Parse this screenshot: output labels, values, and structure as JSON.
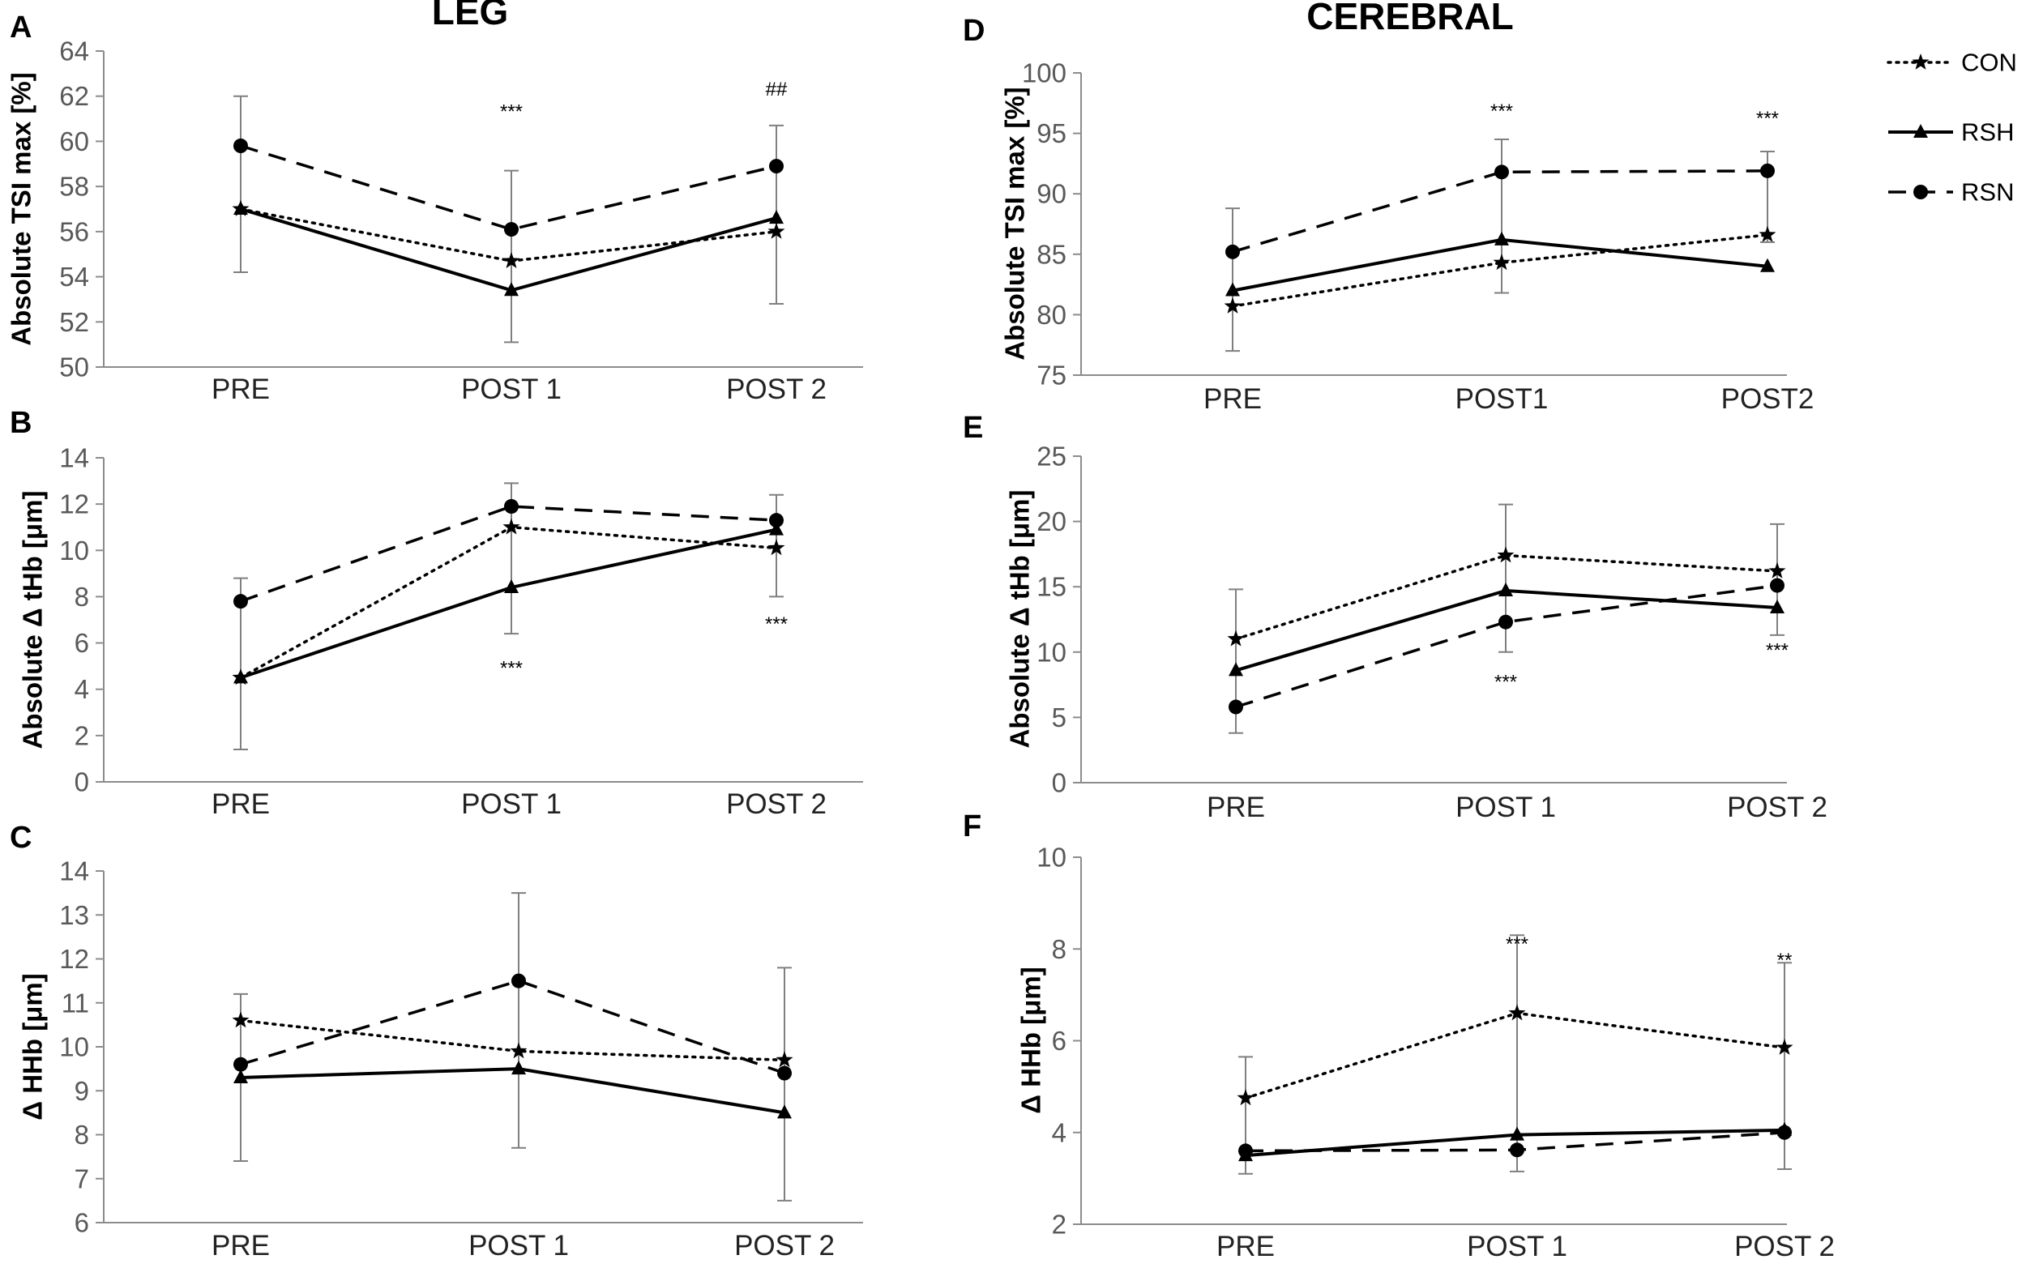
{
  "headings": {
    "left": "LEG",
    "right": "CEREBRAL"
  },
  "legend": [
    {
      "key": "CON",
      "label": "CON"
    },
    {
      "key": "RSH",
      "label": "RSH"
    },
    {
      "key": "RSN",
      "label": "RSN"
    }
  ],
  "series_styles": {
    "CON": {
      "dash": "dotted",
      "marker": "star",
      "color": "#000000"
    },
    "RSH": {
      "dash": "solid",
      "marker": "triangle",
      "color": "#000000"
    },
    "RSN": {
      "dash": "dashed",
      "marker": "circle",
      "color": "#000000"
    }
  },
  "chart_data": [
    {
      "panel": "A",
      "type": "line",
      "title": "",
      "xlabel": "",
      "ylabel": "Absolute TSI max  [%]",
      "categories": [
        "PRE",
        "POST 1",
        "POST 2"
      ],
      "ylim": [
        50,
        64
      ],
      "yticks": [
        50,
        52,
        54,
        56,
        58,
        60,
        62,
        64
      ],
      "series": [
        {
          "name": "CON",
          "values": [
            57.0,
            54.7,
            56.0
          ]
        },
        {
          "name": "RSH",
          "values": [
            57.0,
            53.4,
            56.6
          ]
        },
        {
          "name": "RSN",
          "values": [
            59.8,
            56.1,
            58.9
          ]
        }
      ],
      "error_bars": [
        {
          "x": "PRE",
          "low": 54.2,
          "high": 62.0
        },
        {
          "x": "POST 1",
          "low": 51.1,
          "high": 58.7
        },
        {
          "x": "POST 2",
          "low": 52.8,
          "high": 60.7
        }
      ],
      "annotations": [
        {
          "x": "POST 1",
          "y": 61.3,
          "text": "***"
        },
        {
          "x": "POST 2",
          "y": 62.3,
          "text": "##"
        }
      ]
    },
    {
      "panel": "B",
      "type": "line",
      "title": "",
      "xlabel": "",
      "ylabel": "Absolute Δ tHb [μm]",
      "categories": [
        "PRE",
        "POST 1",
        "POST 2"
      ],
      "ylim": [
        0,
        14
      ],
      "yticks": [
        0,
        2,
        4,
        6,
        8,
        10,
        12,
        14
      ],
      "series": [
        {
          "name": "CON",
          "values": [
            4.5,
            11.0,
            10.1
          ]
        },
        {
          "name": "RSH",
          "values": [
            4.5,
            8.4,
            10.9
          ]
        },
        {
          "name": "RSN",
          "values": [
            7.8,
            11.9,
            11.3
          ]
        }
      ],
      "error_bars": [
        {
          "x": "PRE",
          "low": 1.4,
          "high": 8.8
        },
        {
          "x": "POST 1",
          "low": 6.4,
          "high": 12.9
        },
        {
          "x": "POST 2",
          "low": 8.0,
          "high": 12.4
        }
      ],
      "annotations": [
        {
          "x": "POST 1",
          "y": 4.9,
          "text": "***"
        },
        {
          "x": "POST 2",
          "y": 6.8,
          "text": "***"
        }
      ]
    },
    {
      "panel": "C",
      "type": "line",
      "title": "",
      "xlabel": "",
      "ylabel": "Δ HHb [μm]",
      "categories": [
        "PRE",
        "POST 1",
        "POST 2"
      ],
      "ylim": [
        6,
        14
      ],
      "yticks": [
        6,
        7,
        8,
        9,
        10,
        11,
        12,
        13,
        14
      ],
      "series": [
        {
          "name": "CON",
          "values": [
            10.6,
            9.9,
            9.7
          ]
        },
        {
          "name": "RSH",
          "values": [
            9.3,
            9.5,
            8.5
          ]
        },
        {
          "name": "RSN",
          "values": [
            9.6,
            11.5,
            9.4
          ]
        }
      ],
      "error_bars": [
        {
          "x": "PRE",
          "low": 7.4,
          "high": 11.2
        },
        {
          "x": "POST 1",
          "low": 7.7,
          "high": 13.5
        },
        {
          "x": "POST 2",
          "low": 6.5,
          "high": 11.8
        }
      ],
      "annotations": []
    },
    {
      "panel": "D",
      "type": "line",
      "title": "",
      "xlabel": "",
      "ylabel": "Absolute TSI max [%]",
      "categories": [
        "PRE",
        "POST1",
        "POST2"
      ],
      "ylim": [
        75,
        100
      ],
      "yticks": [
        75,
        80,
        85,
        90,
        95,
        100
      ],
      "series": [
        {
          "name": "CON",
          "values": [
            80.7,
            84.3,
            86.6
          ]
        },
        {
          "name": "RSH",
          "values": [
            82.0,
            86.2,
            84.0
          ]
        },
        {
          "name": "RSN",
          "values": [
            85.2,
            91.8,
            91.9
          ]
        }
      ],
      "error_bars": [
        {
          "x": "PRE",
          "low": 77.0,
          "high": 88.8
        },
        {
          "x": "POST1",
          "low": 81.8,
          "high": 94.5
        },
        {
          "x": "POST2",
          "low": 86.0,
          "high": 93.5
        }
      ],
      "annotations": [
        {
          "x": "POST1",
          "y": 96.8,
          "text": "***"
        },
        {
          "x": "POST2",
          "y": 96.2,
          "text": "***"
        }
      ]
    },
    {
      "panel": "E",
      "type": "line",
      "title": "",
      "xlabel": "",
      "ylabel": "Absolute Δ tHb [μm]",
      "categories": [
        "PRE",
        "POST 1",
        "POST 2"
      ],
      "ylim": [
        0,
        25
      ],
      "yticks": [
        0,
        5,
        10,
        15,
        20,
        25
      ],
      "series": [
        {
          "name": "CON",
          "values": [
            11.0,
            17.4,
            16.2
          ]
        },
        {
          "name": "RSH",
          "values": [
            8.6,
            14.7,
            13.4
          ]
        },
        {
          "name": "RSN",
          "values": [
            5.8,
            12.3,
            15.1
          ]
        }
      ],
      "error_bars": [
        {
          "x": "PRE",
          "low": 3.8,
          "high": 14.8
        },
        {
          "x": "POST 1",
          "low": 10.0,
          "high": 21.3
        },
        {
          "x": "POST 2",
          "low": 11.3,
          "high": 19.8
        }
      ],
      "annotations": [
        {
          "x": "POST 1",
          "y": 7.7,
          "text": "***"
        },
        {
          "x": "POST 2",
          "y": 10.1,
          "text": "***"
        }
      ]
    },
    {
      "panel": "F",
      "type": "line",
      "title": "",
      "xlabel": "",
      "ylabel": "Δ HHb [μm]",
      "categories": [
        "PRE",
        "POST 1",
        "POST 2"
      ],
      "ylim": [
        2,
        10
      ],
      "yticks": [
        2,
        4,
        6,
        8,
        10
      ],
      "series": [
        {
          "name": "CON",
          "values": [
            4.75,
            6.6,
            5.85
          ]
        },
        {
          "name": "RSH",
          "values": [
            3.5,
            3.95,
            4.05
          ]
        },
        {
          "name": "RSN",
          "values": [
            3.6,
            3.62,
            4.0
          ]
        }
      ],
      "error_bars": [
        {
          "x": "PRE",
          "low": 3.1,
          "high": 5.65
        },
        {
          "x": "POST 1",
          "low": 3.15,
          "high": 8.3
        },
        {
          "x": "POST 2",
          "low": 3.2,
          "high": 7.7
        }
      ],
      "annotations": [
        {
          "x": "POST 1",
          "y": 8.1,
          "text": "***"
        },
        {
          "x": "POST 2",
          "y": 7.75,
          "text": "**"
        }
      ]
    }
  ]
}
